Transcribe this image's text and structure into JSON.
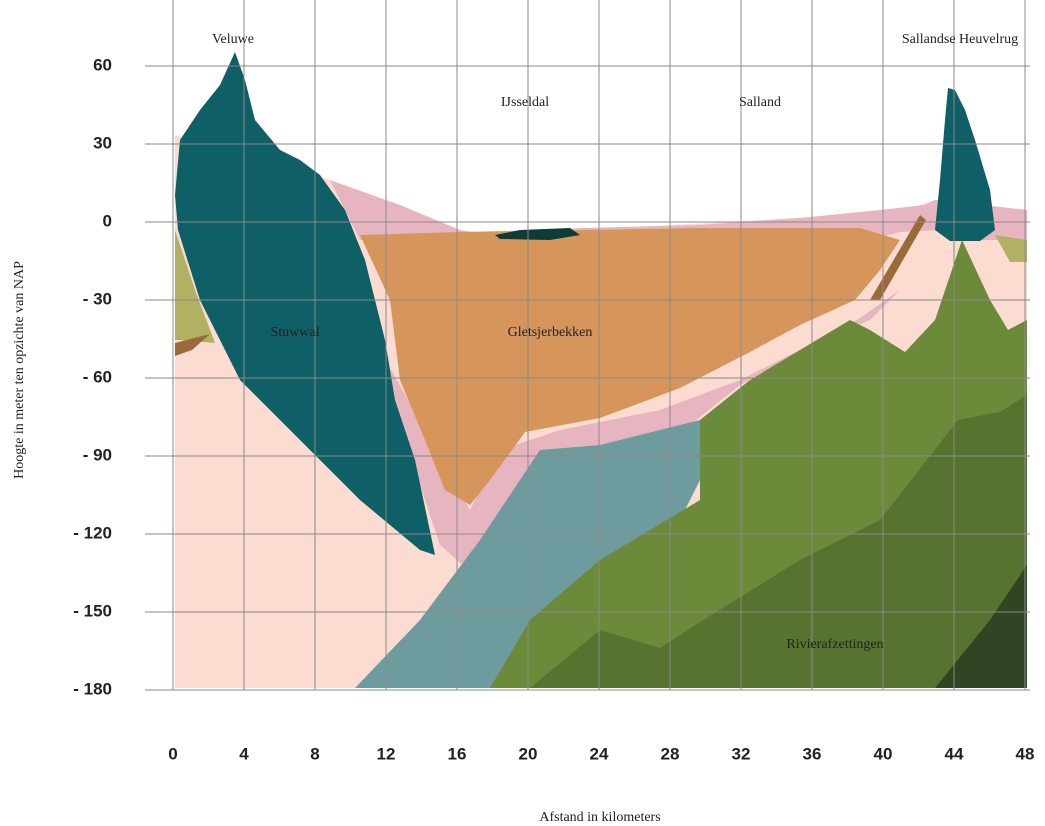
{
  "chart_data": {
    "type": "cross-section",
    "xlabel": "Afstand in kilometers",
    "ylabel": "Hoogte in meter ten opzichte van NAP",
    "xlim": [
      0,
      48
    ],
    "xticks": [
      0,
      4,
      8,
      12,
      16,
      20,
      24,
      28,
      32,
      36,
      40,
      44,
      48
    ],
    "ylim": [
      -180,
      60
    ],
    "yticks": [
      60,
      30,
      0,
      {
        "value": -30,
        "label": "- 30"
      },
      {
        "value": -60,
        "label": "- 60"
      },
      {
        "value": -90,
        "label": "- 90"
      },
      {
        "value": -120,
        "label": "- 120"
      },
      {
        "value": -150,
        "label": "- 150"
      },
      {
        "value": -180,
        "label": "- 180"
      }
    ],
    "grid": true,
    "annotations": [
      "Veluwe",
      "IJsseldal",
      "Salland",
      "Sallandse Heuvelrug",
      "Stuwwal",
      "Gletsjerbekken",
      "Rivierafzettingen"
    ]
  }
}
